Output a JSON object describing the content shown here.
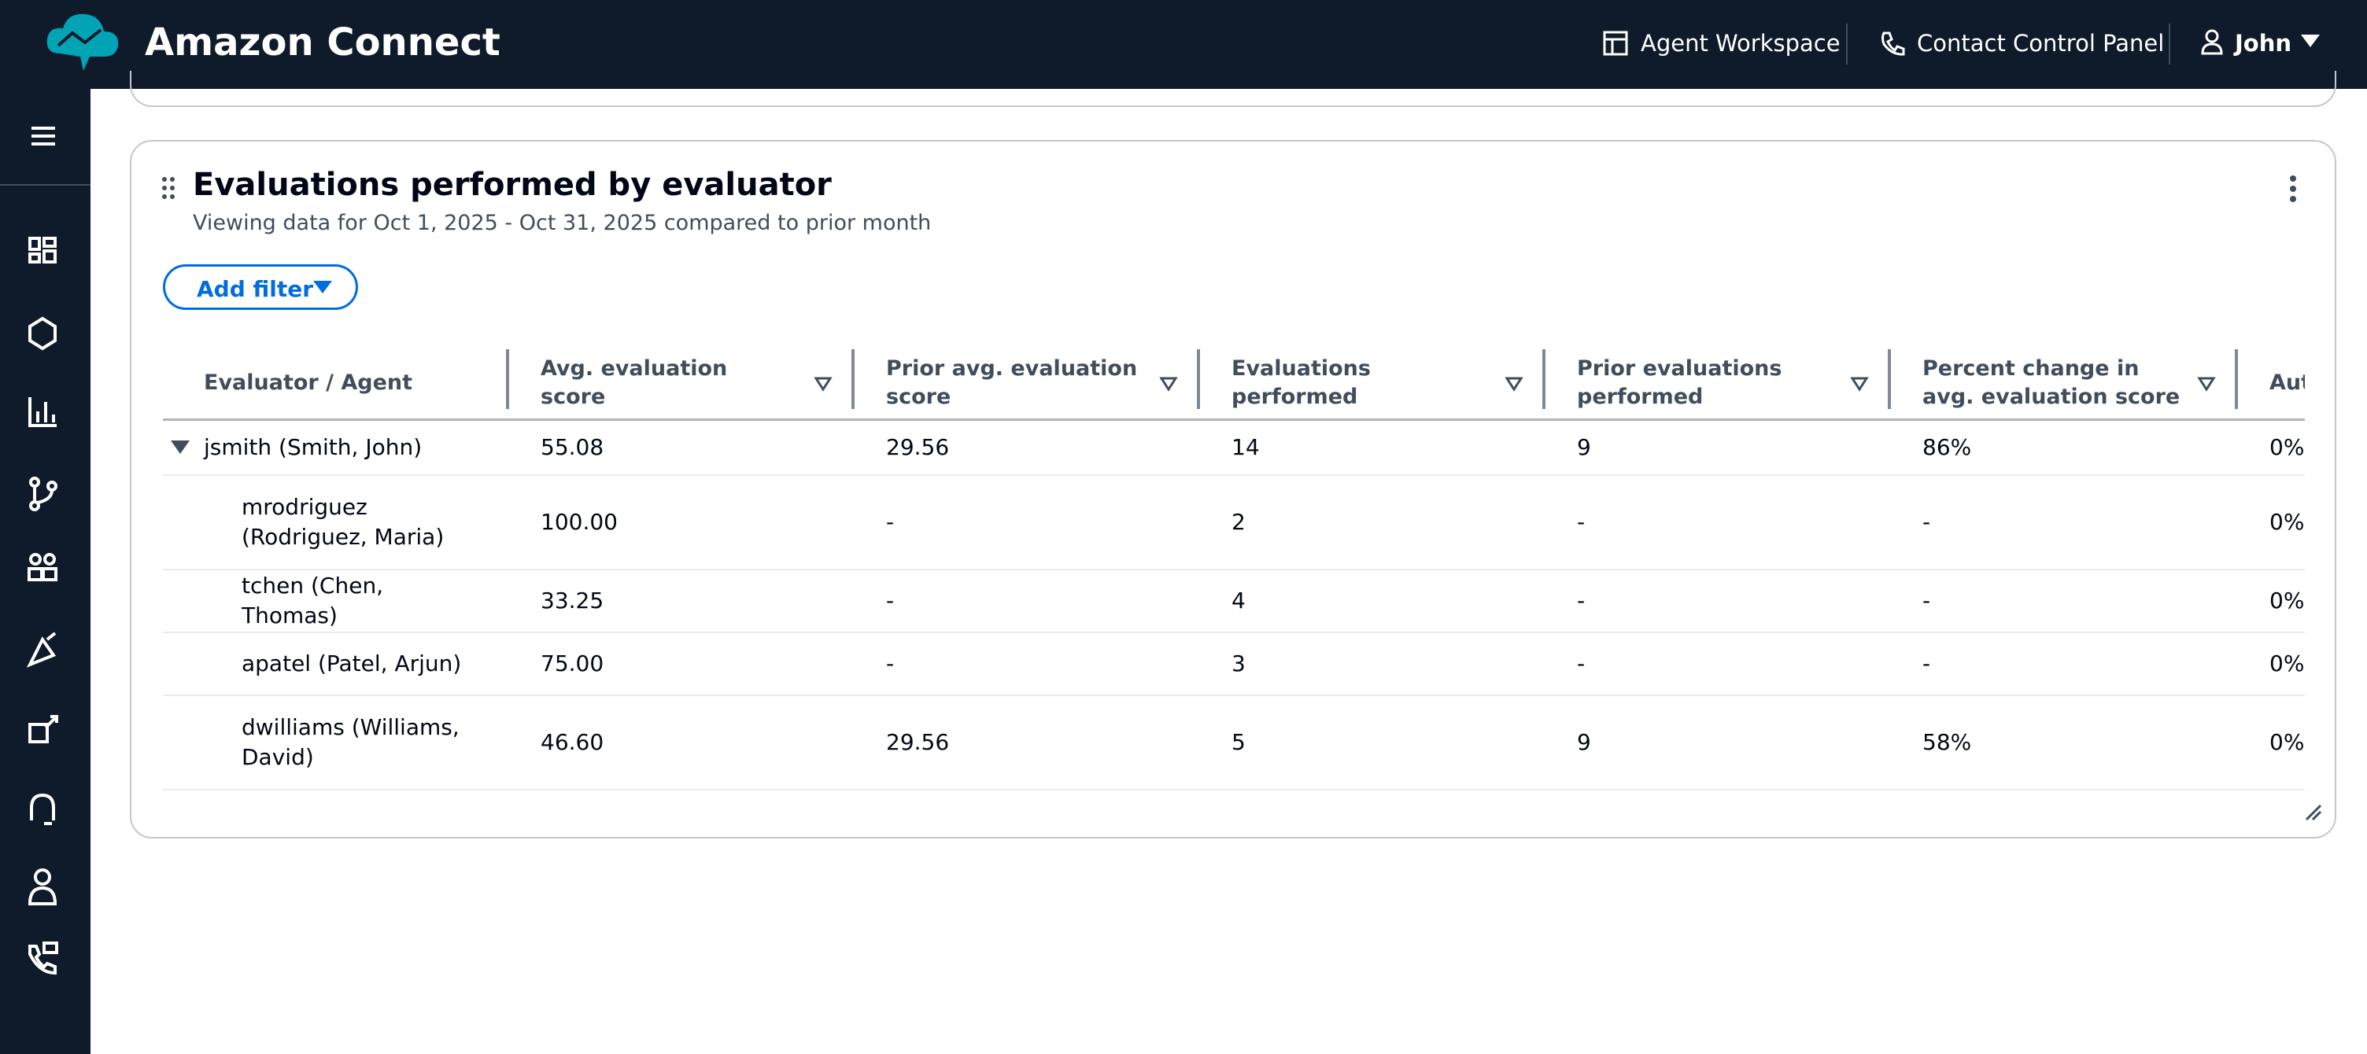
{
  "header": {
    "brand": "Amazon Connect",
    "nav": [
      "Agent Workspace",
      "Contact Control Panel",
      "John"
    ]
  },
  "panel": {
    "title": "Evaluations performed by evaluator",
    "subtitle": "Viewing data for Oct 1, 2025 - Oct 31, 2025 compared to prior month",
    "filter_button": "Add filter"
  },
  "table": {
    "columns": [
      "Evaluator / Agent",
      "Avg. evaluation score",
      "Prior avg. evaluation score",
      "Evaluations performed",
      "Prior evaluations performed",
      "Percent change in avg. evaluation score",
      "Aut"
    ],
    "rows": [
      {
        "cells": [
          "jsmith (Smith, John)",
          "55.08",
          "29.56",
          "14",
          "9",
          "86%",
          "0%"
        ],
        "children": [
          {
            "cells": [
              "mrodriguez (Rodriguez, Maria)",
              "100.00",
              "-",
              "2",
              "-",
              "-",
              "0%"
            ]
          },
          {
            "cells": [
              "tchen (Chen, Thomas)",
              "33.25",
              "-",
              "4",
              "-",
              "-",
              "0%"
            ]
          },
          {
            "cells": [
              "apatel (Patel, Arjun)",
              "75.00",
              "-",
              "3",
              "-",
              "-",
              "0%"
            ]
          },
          {
            "cells": [
              "dwilliams (Williams, David)",
              "46.60",
              "29.56",
              "5",
              "9",
              "58%",
              "0%"
            ]
          }
        ]
      }
    ]
  }
}
